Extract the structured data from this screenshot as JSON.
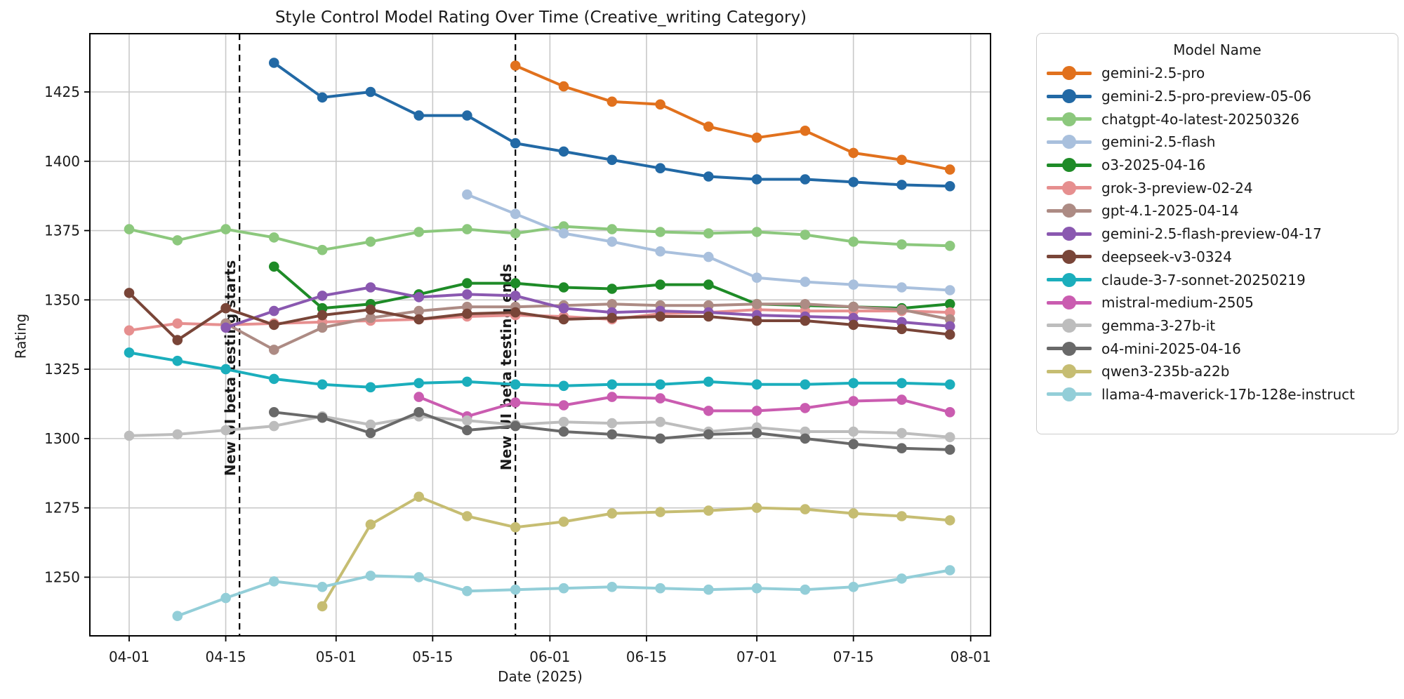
{
  "chart_data": {
    "type": "line",
    "title": "Style Control Model Rating Over Time (Creative_writing Category)",
    "xlabel": "Date (2025)",
    "ylabel": "Rating",
    "ylim": [
      1229,
      1445
    ],
    "grid": true,
    "legend": {
      "title": "Model Name",
      "position": "outside-right"
    },
    "x_tick_labels": [
      "04-01",
      "04-15",
      "05-01",
      "05-15",
      "06-01",
      "06-15",
      "07-01",
      "07-15",
      "08-01"
    ],
    "x_tick_days": [
      0,
      14,
      30,
      44,
      61,
      75,
      91,
      105,
      122
    ],
    "y_ticks": [
      1250,
      1275,
      1300,
      1325,
      1350,
      1375,
      1400,
      1425
    ],
    "dates": [
      "04-01",
      "04-08",
      "04-15",
      "04-22",
      "04-29",
      "05-06",
      "05-13",
      "05-20",
      "05-27",
      "06-03",
      "06-10",
      "06-17",
      "06-24",
      "07-01",
      "07-08",
      "07-15",
      "07-22",
      "07-29"
    ],
    "date_days": [
      0,
      7,
      14,
      21,
      28,
      35,
      42,
      49,
      56,
      63,
      70,
      77,
      84,
      91,
      98,
      105,
      112,
      119
    ],
    "annotations": [
      {
        "text": "New UI beta testing starts",
        "day": 16,
        "label_bottom_rating": 1286.5
      },
      {
        "text": "New UI beta testing ends",
        "day": 56,
        "label_bottom_rating": 1288.5
      }
    ],
    "series": [
      {
        "name": "gemini-2.5-pro",
        "color": "#e1711d",
        "values": [
          null,
          null,
          null,
          null,
          null,
          null,
          null,
          null,
          1434.5,
          1427,
          1421.5,
          1420.5,
          1412.5,
          1408.5,
          1411,
          1403,
          1400.5,
          1397
        ]
      },
      {
        "name": "gemini-2.5-pro-preview-05-06",
        "color": "#2269a5",
        "values": [
          null,
          null,
          null,
          1435.5,
          1423,
          1425,
          1416.5,
          1416.5,
          1406.5,
          1403.5,
          1400.5,
          1397.5,
          1394.5,
          1393.5,
          1393.5,
          1392.5,
          1391.5,
          1391
        ]
      },
      {
        "name": "chatgpt-4o-latest-20250326",
        "color": "#8cc87d",
        "values": [
          1375.5,
          1371.5,
          1375.5,
          1372.5,
          1368,
          1371,
          1374.5,
          1375.5,
          1374,
          1376.5,
          1375.5,
          1374.5,
          1374,
          1374.5,
          1373.5,
          1371,
          1370,
          1369.5
        ]
      },
      {
        "name": "gemini-2.5-flash",
        "color": "#a9c0dd",
        "values": [
          null,
          null,
          null,
          null,
          null,
          null,
          null,
          1388,
          1381,
          1374,
          1371,
          1367.5,
          1365.5,
          1358,
          1356.5,
          1355.5,
          1354.5,
          1353.5
        ]
      },
      {
        "name": "o3-2025-04-16",
        "color": "#1e8b27",
        "values": [
          null,
          null,
          null,
          1362,
          1347,
          1348.5,
          1352,
          1356,
          1356,
          1354.5,
          1354,
          1355.5,
          1355.5,
          1348.5,
          1348,
          1347.5,
          1347,
          1348.5
        ]
      },
      {
        "name": "grok-3-preview-02-24",
        "color": "#e68f8f",
        "values": [
          1339,
          1341.5,
          1341,
          1341.5,
          1342,
          1342.5,
          1343,
          1344,
          1344.5,
          1344,
          1343,
          1345,
          1345.5,
          1346.5,
          1346,
          1346,
          1346,
          1345.5
        ]
      },
      {
        "name": "gpt-4.1-2025-04-14",
        "color": "#ad8b84",
        "values": [
          null,
          null,
          1341.5,
          1332,
          1340,
          1343.5,
          1346,
          1347.5,
          1347.5,
          1348,
          1348.5,
          1348,
          1348,
          1348.5,
          1348.5,
          1347.5,
          1346.5,
          1343
        ]
      },
      {
        "name": "gemini-2.5-flash-preview-04-17",
        "color": "#8a58b0",
        "values": [
          null,
          null,
          1340,
          1346,
          1351.5,
          1354.5,
          1351,
          1352,
          1351.5,
          1347,
          1345.5,
          1346,
          1345.5,
          1344.5,
          1344,
          1343.5,
          1342,
          1340.5
        ]
      },
      {
        "name": "deepseek-v3-0324",
        "color": "#794538",
        "values": [
          1352.5,
          1335.5,
          1347,
          1341,
          1344.5,
          1346.5,
          1343,
          1345,
          1345.5,
          1343,
          1343.5,
          1344,
          1344,
          1342.5,
          1342.5,
          1341,
          1339.5,
          1337.5
        ]
      },
      {
        "name": "claude-3-7-sonnet-20250219",
        "color": "#1baebc",
        "values": [
          1331,
          1328,
          1325,
          1321.5,
          1319.5,
          1318.5,
          1320,
          1320.5,
          1319.5,
          1319,
          1319.5,
          1319.5,
          1320.5,
          1319.5,
          1319.5,
          1320,
          1320,
          1319.5
        ]
      },
      {
        "name": "mistral-medium-2505",
        "color": "#ca5cb0",
        "values": [
          null,
          null,
          null,
          null,
          null,
          null,
          1315,
          1308,
          1313,
          1312,
          1315,
          1314.5,
          1310,
          1310,
          1311,
          1313.5,
          1314,
          1309.5
        ]
      },
      {
        "name": "gemma-3-27b-it",
        "color": "#bdbdbd",
        "values": [
          1301,
          1301.5,
          1303,
          1304.5,
          1308,
          1305,
          1308,
          1306.5,
          1305,
          1306,
          1305.5,
          1306,
          1302.5,
          1304,
          1302.5,
          1302.5,
          1302,
          1300.5
        ]
      },
      {
        "name": "o4-mini-2025-04-16",
        "color": "#696969",
        "values": [
          null,
          null,
          null,
          1309.5,
          1307.5,
          1302,
          1309.5,
          1303,
          1304.5,
          1302.5,
          1301.5,
          1300,
          1301.5,
          1302,
          1300,
          1298,
          1296.5,
          1296
        ]
      },
      {
        "name": "qwen3-235b-a22b",
        "color": "#c6bd72",
        "values": [
          null,
          null,
          null,
          null,
          1239.5,
          1269,
          1279,
          1272,
          1268,
          1270,
          1273,
          1273.5,
          1274,
          1275,
          1274.5,
          1273,
          1272,
          1270.5
        ]
      },
      {
        "name": "llama-4-maverick-17b-128e-instruct",
        "color": "#93ced8",
        "values": [
          null,
          1236,
          1242.5,
          1248.5,
          1246.5,
          1250.5,
          1250,
          1245,
          1245.5,
          1246,
          1246.5,
          1246,
          1245.5,
          1246,
          1245.5,
          1246.5,
          1249.5,
          1252.5
        ]
      }
    ],
    "style_colors": {
      "gridline": "#c9c9c9",
      "spine": "#000000",
      "dashed_line": "#000000",
      "text": "#1a1a1a"
    }
  }
}
